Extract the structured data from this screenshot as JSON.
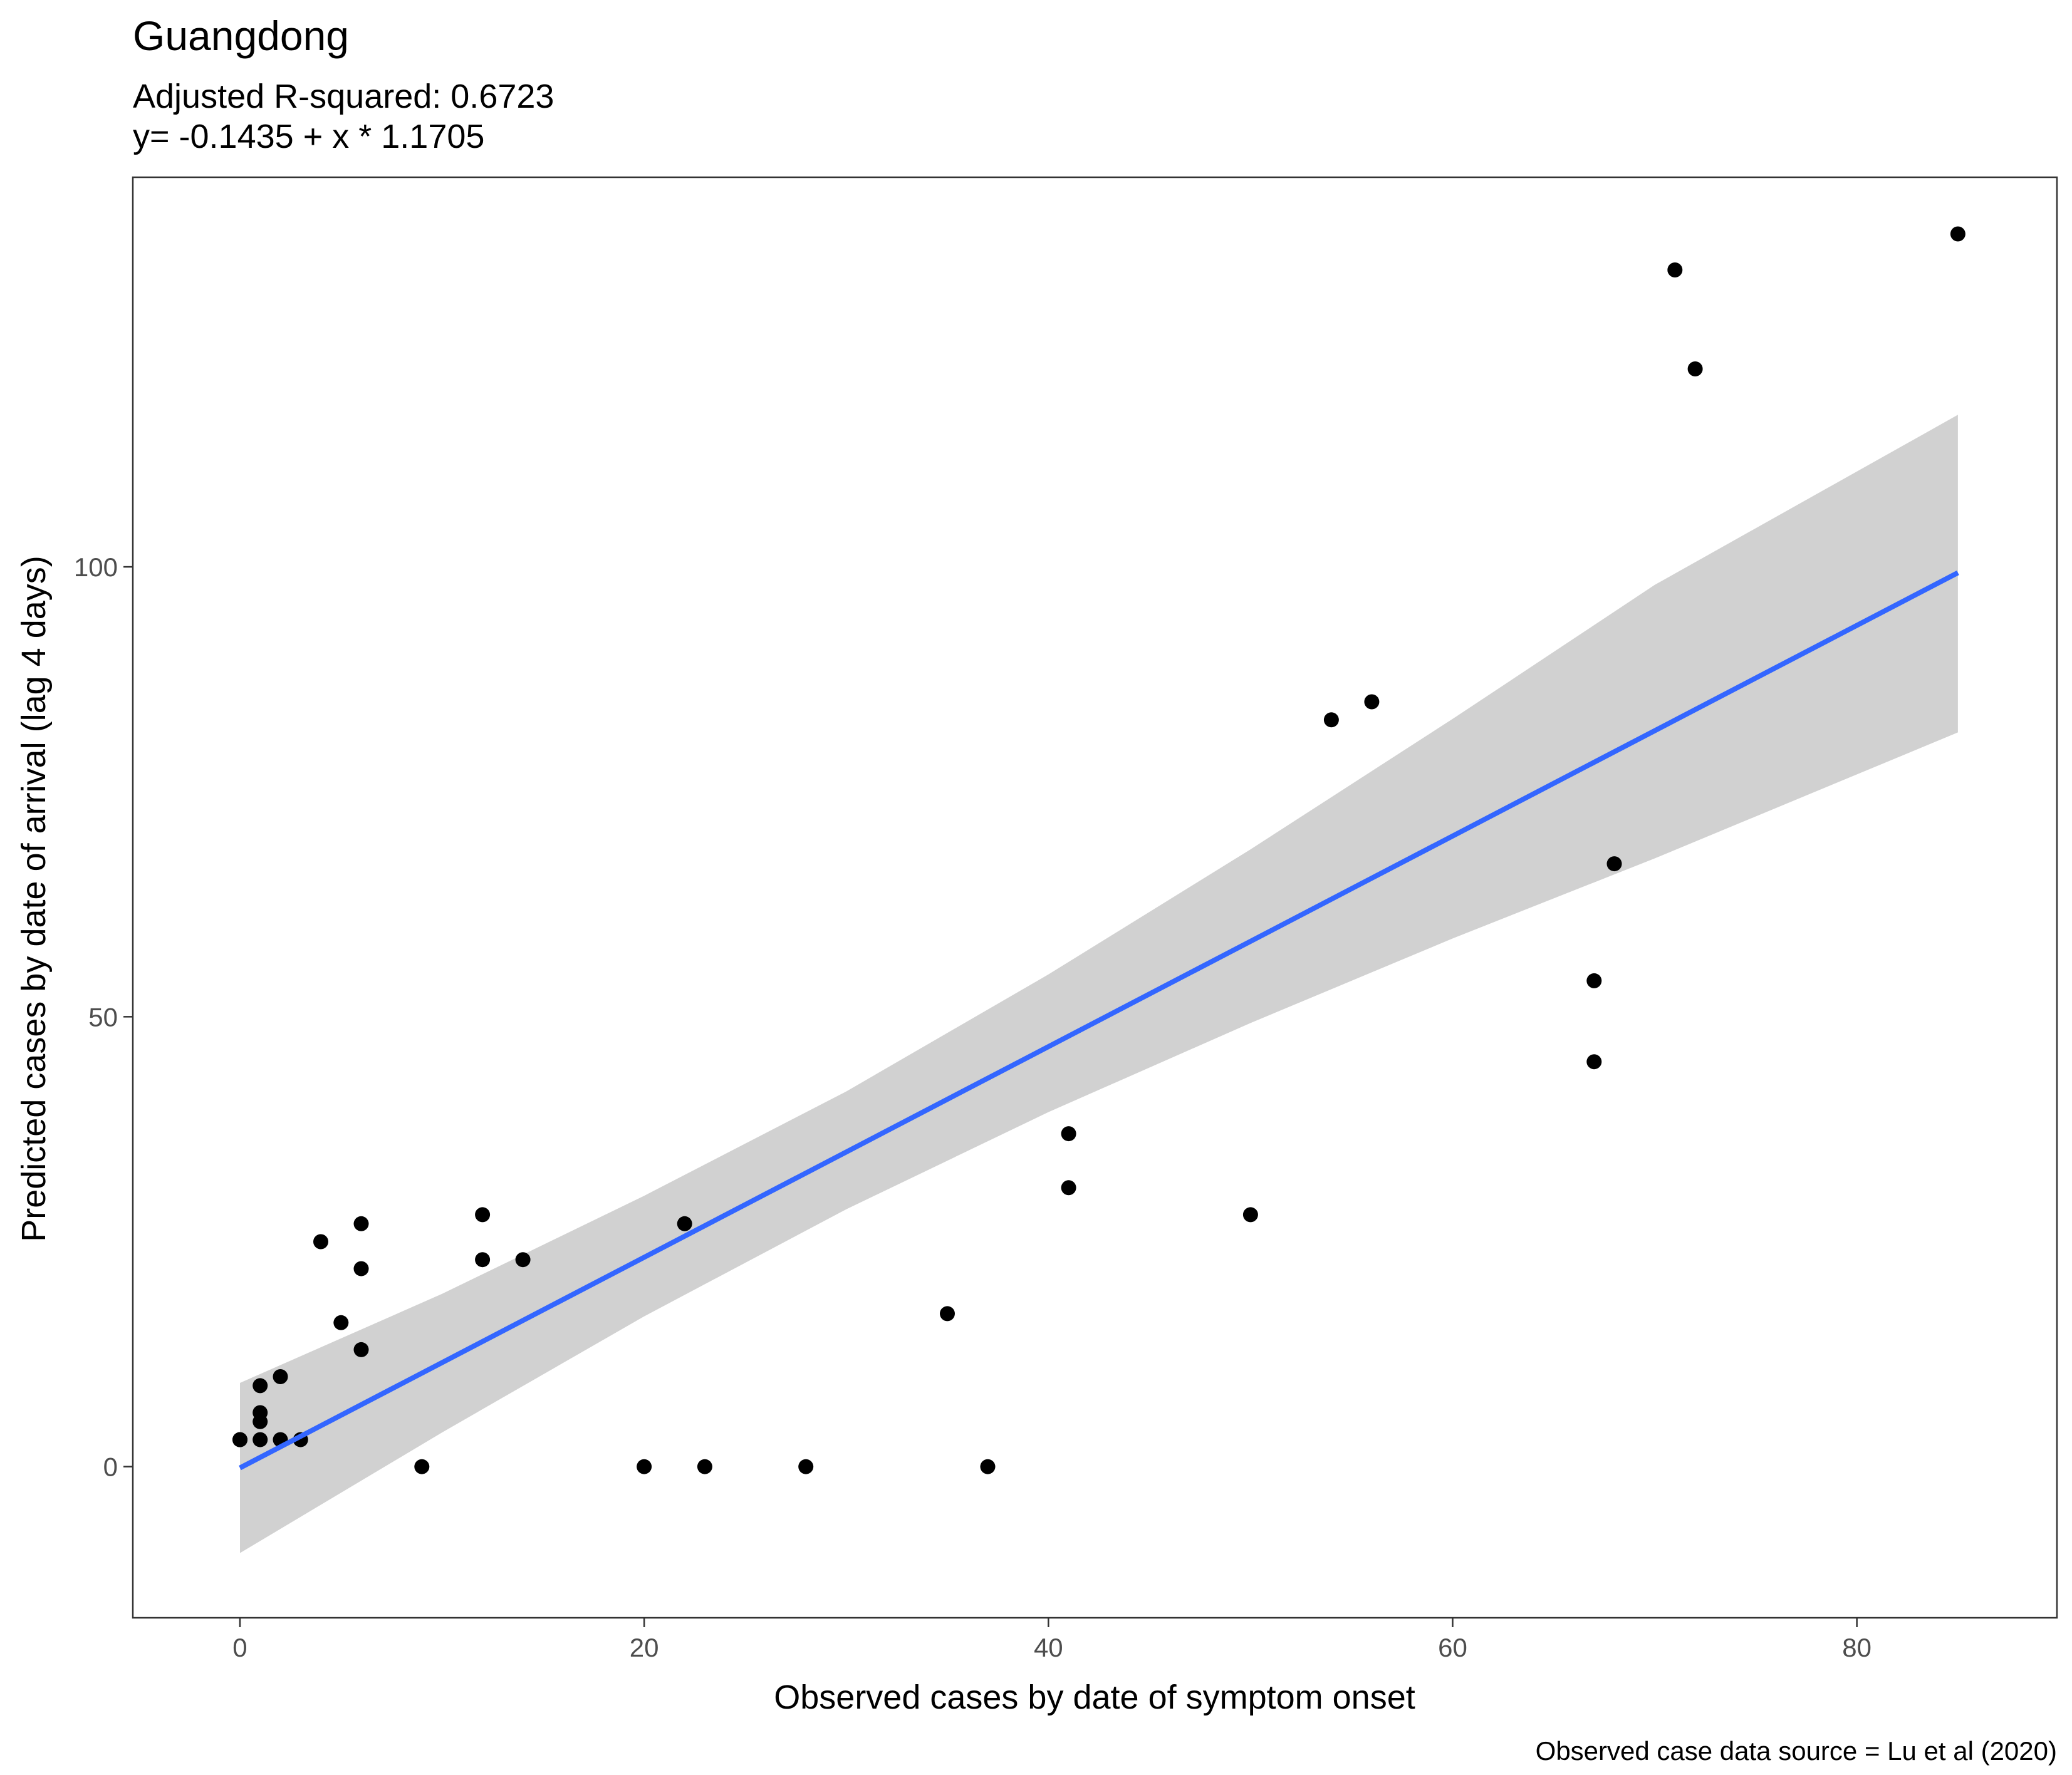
{
  "chart_data": {
    "type": "scatter",
    "title": "Guangdong",
    "subtitle_lines": [
      "Adjusted R-squared:  0.6723",
      "y= -0.1435 + x * 1.1705"
    ],
    "xlabel": "Observed cases by date of symptom onset",
    "ylabel": "Predicted cases by date of arrival (lag 4 days)",
    "caption": "Observed case data source = Lu et al (2020)",
    "xlim": [
      -5.3,
      89.9
    ],
    "ylim": [
      -16.8,
      143.3
    ],
    "x_ticks": [
      0,
      20,
      40,
      60,
      80
    ],
    "y_ticks": [
      0,
      50,
      100
    ],
    "grid": false,
    "legend": "none",
    "colors": {
      "points": "#000000",
      "fit_line": "#3366ff",
      "ribbon": "#999999",
      "panel_border": "#333333"
    },
    "points": [
      {
        "x": 0,
        "y": 3
      },
      {
        "x": 0,
        "y": 3
      },
      {
        "x": 1,
        "y": 3
      },
      {
        "x": 1,
        "y": 5
      },
      {
        "x": 1,
        "y": 6
      },
      {
        "x": 1,
        "y": 9
      },
      {
        "x": 2,
        "y": 3
      },
      {
        "x": 2,
        "y": 10
      },
      {
        "x": 3,
        "y": 3
      },
      {
        "x": 4,
        "y": 25
      },
      {
        "x": 5,
        "y": 16
      },
      {
        "x": 6,
        "y": 13
      },
      {
        "x": 6,
        "y": 22
      },
      {
        "x": 6,
        "y": 27
      },
      {
        "x": 9,
        "y": 0
      },
      {
        "x": 12,
        "y": 23
      },
      {
        "x": 12,
        "y": 28
      },
      {
        "x": 14,
        "y": 23
      },
      {
        "x": 20,
        "y": 0
      },
      {
        "x": 22,
        "y": 27
      },
      {
        "x": 23,
        "y": 0
      },
      {
        "x": 28,
        "y": 0
      },
      {
        "x": 35,
        "y": 17
      },
      {
        "x": 37,
        "y": 0
      },
      {
        "x": 41,
        "y": 31
      },
      {
        "x": 41,
        "y": 37
      },
      {
        "x": 50,
        "y": 28
      },
      {
        "x": 54,
        "y": 83
      },
      {
        "x": 56,
        "y": 85
      },
      {
        "x": 67,
        "y": 45
      },
      {
        "x": 67,
        "y": 54
      },
      {
        "x": 68,
        "y": 67
      },
      {
        "x": 71,
        "y": 133
      },
      {
        "x": 72,
        "y": 122
      },
      {
        "x": 85,
        "y": 137
      }
    ],
    "fit": {
      "intercept": -0.1435,
      "slope": 1.1705,
      "x_range": [
        0,
        85
      ]
    },
    "confidence_band": [
      {
        "x": 0,
        "lower": -9.6,
        "upper": 9.3
      },
      {
        "x": 10,
        "lower": 3.8,
        "upper": 19.2
      },
      {
        "x": 20,
        "lower": 16.7,
        "upper": 30.1
      },
      {
        "x": 30,
        "lower": 28.6,
        "upper": 41.7
      },
      {
        "x": 40,
        "lower": 39.4,
        "upper": 54.7
      },
      {
        "x": 50,
        "lower": 49.3,
        "upper": 68.6
      },
      {
        "x": 60,
        "lower": 58.7,
        "upper": 83.1
      },
      {
        "x": 70,
        "lower": 67.6,
        "upper": 98.0
      },
      {
        "x": 85,
        "lower": 81.6,
        "upper": 116.9
      }
    ]
  }
}
